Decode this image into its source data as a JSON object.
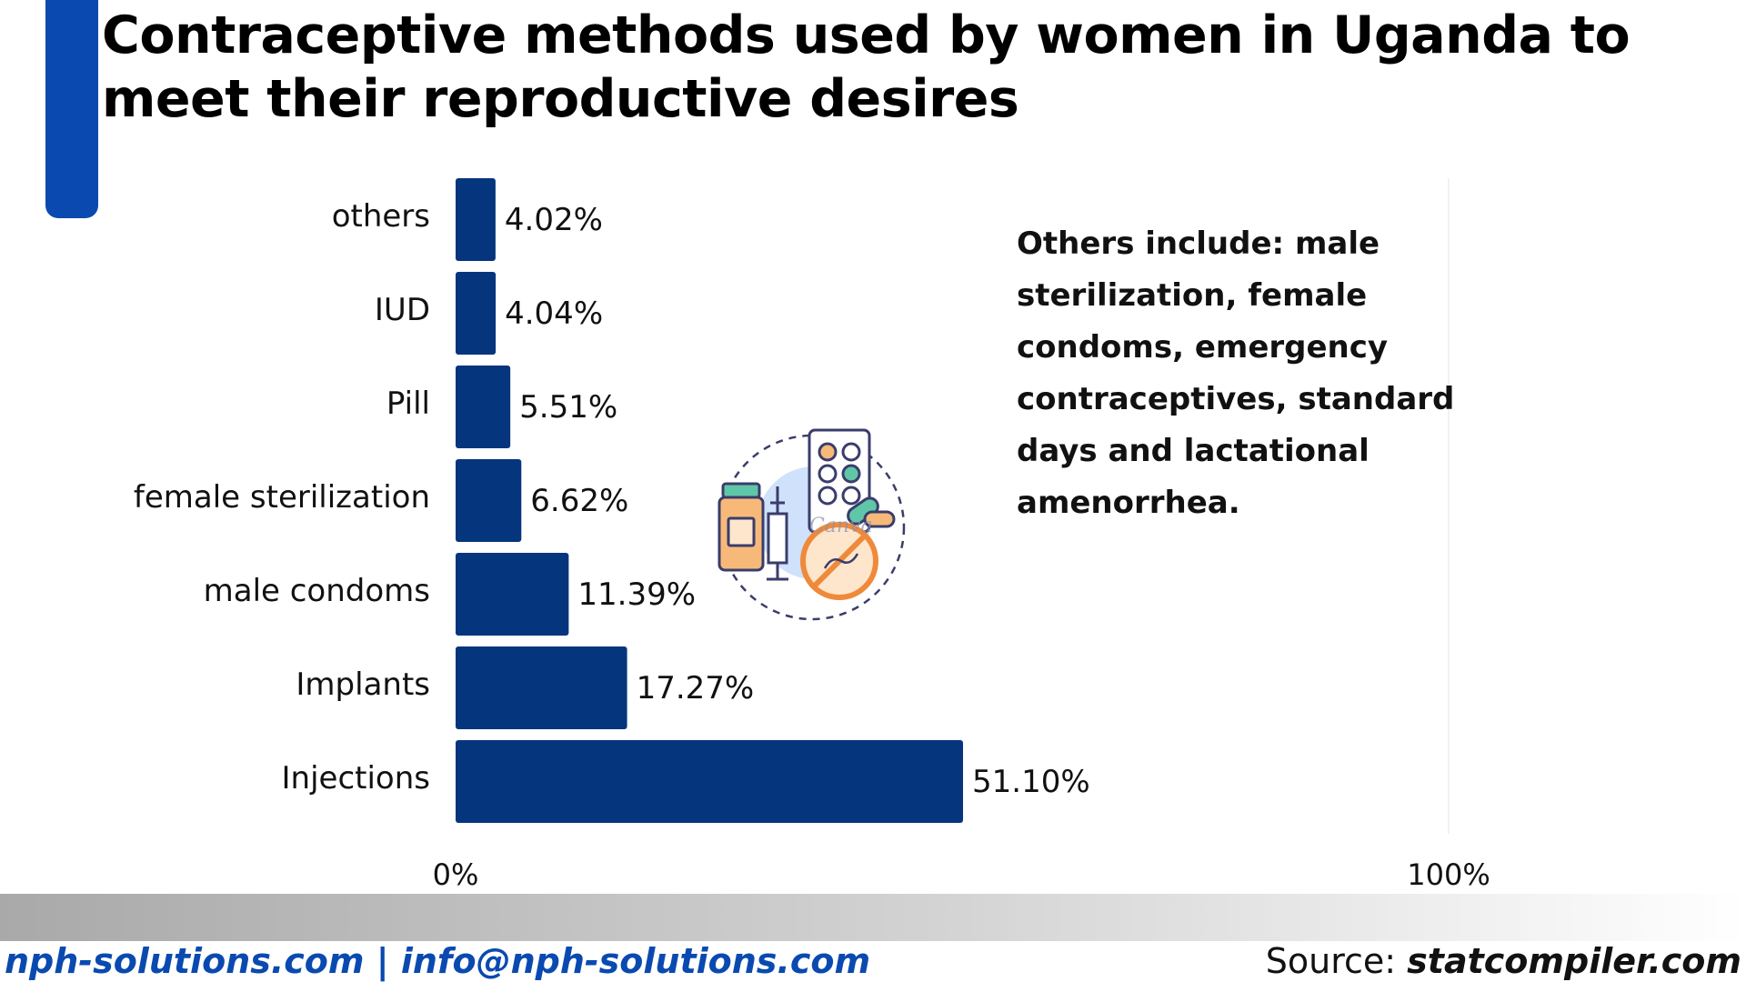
{
  "title_lines": [
    "Contraceptive methods used by women in Uganda to",
    "meet their reproductive desires"
  ],
  "note": {
    "lines": [
      "Others include: male",
      "sterilization, female",
      "condoms, emergency",
      "contraceptives, standard",
      "days and lactational",
      "amenorrhea."
    ]
  },
  "illustration": {
    "icon": "contraceptives-icon",
    "watermark": "Canva"
  },
  "footer": {
    "contact": "nph-solutions.com | info@nph-solutions.com",
    "source_prefix": "Source: ",
    "source_site": "statcompiler.com"
  },
  "colors": {
    "bar": "#05357d",
    "accent": "#0a4ab0"
  },
  "chart_data": {
    "type": "bar",
    "orientation": "horizontal",
    "categories": [
      "others",
      "IUD",
      "Pill",
      "female sterilization",
      "male condoms",
      "Implants",
      "Injections"
    ],
    "values": [
      4.02,
      4.04,
      5.51,
      6.62,
      11.39,
      17.27,
      51.1
    ],
    "value_labels": [
      "4.02%",
      "4.04%",
      "5.51%",
      "6.62%",
      "11.39%",
      "17.27%",
      "51.10%"
    ],
    "xlim": [
      0,
      100
    ],
    "x_ticks": [
      "0%",
      "100%"
    ],
    "grid": false
  }
}
